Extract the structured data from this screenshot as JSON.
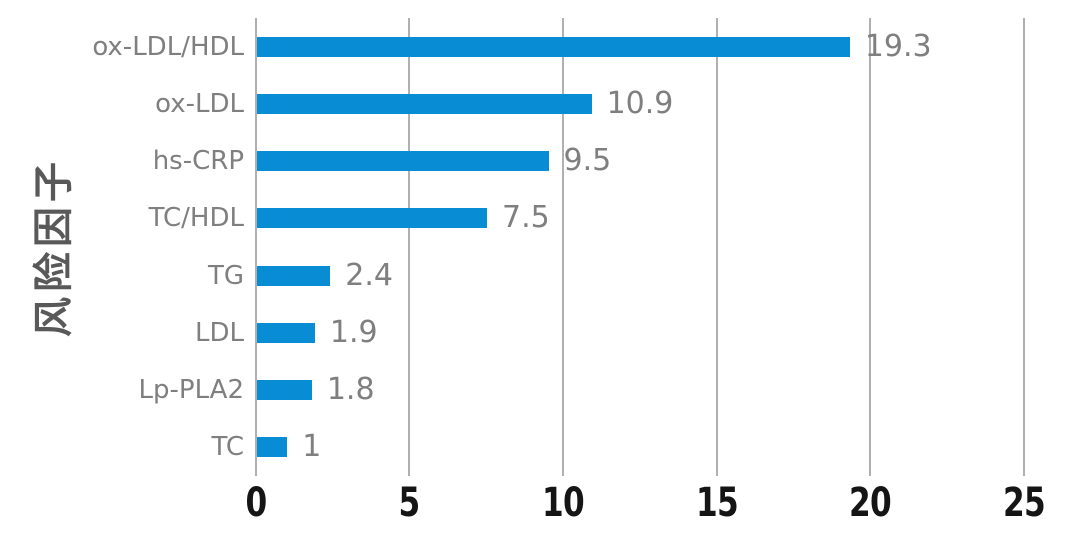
{
  "chart_data": {
    "type": "bar",
    "orientation": "horizontal",
    "title": "",
    "xlabel": "",
    "ylabel": "风险因子",
    "categories": [
      "ox-LDL/HDL",
      "ox-LDL",
      "hs-CRP",
      "TC/HDL",
      "TG",
      "LDL",
      "Lp-PLA2",
      "TC"
    ],
    "values": [
      19.3,
      10.9,
      9.5,
      7.5,
      2.4,
      1.9,
      1.8,
      1
    ],
    "value_labels": [
      "19.3",
      "10.9",
      "9.5",
      "7.5",
      "2.4",
      "1.9",
      "1.8",
      "1"
    ],
    "xlim": [
      0,
      25
    ],
    "xticks": [
      0,
      5,
      10,
      15,
      20,
      25
    ],
    "grid": "vertical-gridlines",
    "legend": "none",
    "colors": {
      "bar": "#088dd4",
      "gridline": "#b0b0b0",
      "category_label": "#7f7f7f",
      "value_label": "#7f7f7f",
      "tick_label": "#151515",
      "axis_title": "#595959"
    }
  }
}
